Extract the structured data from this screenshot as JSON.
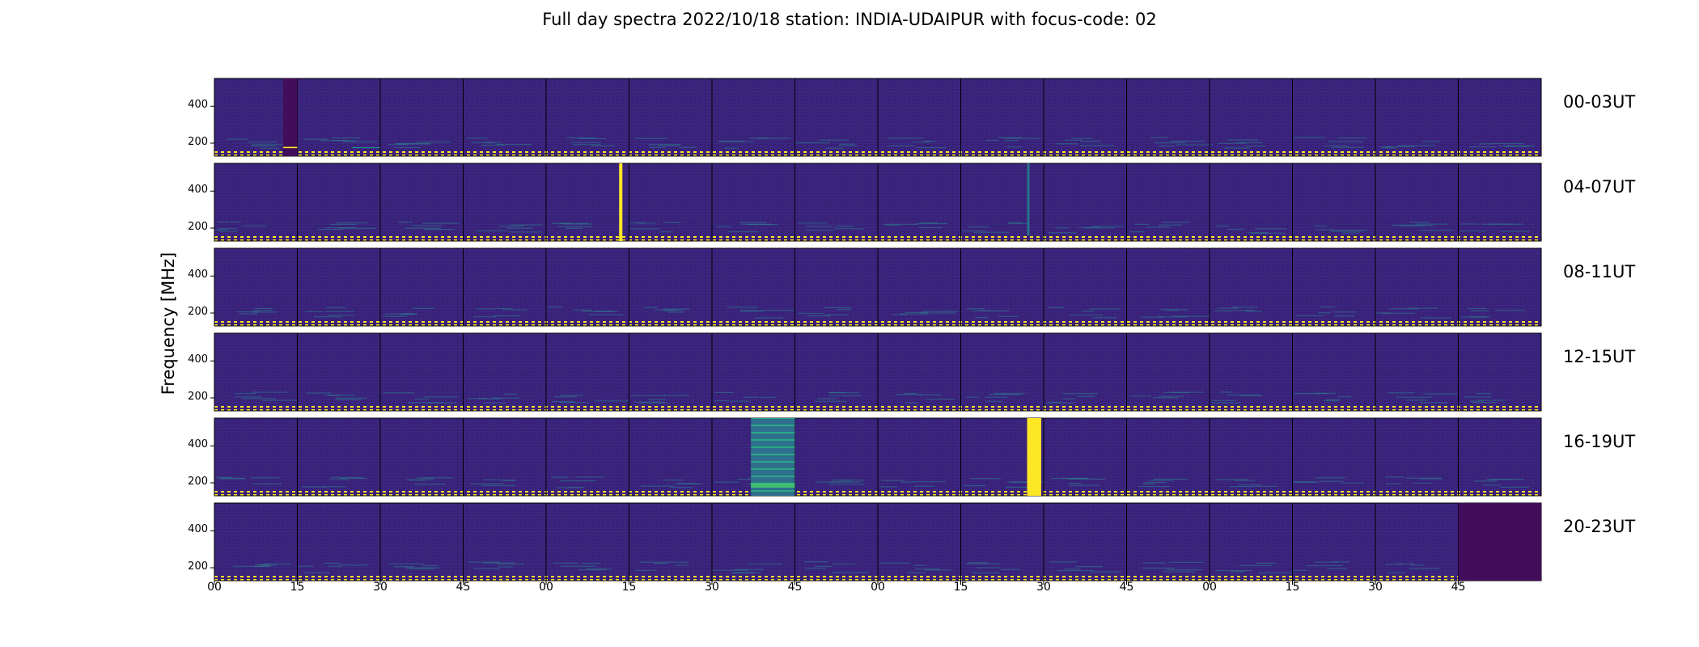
{
  "chart_data": {
    "type": "heatmap",
    "title": "Full day spectra 2022/10/18 station: INDIA-UDAIPUR with focus-code: 02",
    "ylabel": "Frequency [MHz]",
    "xlabel": "",
    "rows": [
      "00-03UT",
      "04-07UT",
      "08-11UT",
      "12-15UT",
      "16-19UT",
      "20-23UT"
    ],
    "panels_per_row": 16,
    "panel_minutes": 15,
    "ylim": [
      130,
      550
    ],
    "yticks": [
      "200",
      "400"
    ],
    "xticks": [
      "00",
      "15",
      "30",
      "45",
      "00",
      "15",
      "30",
      "45",
      "00",
      "15",
      "30",
      "45",
      "00",
      "15",
      "30",
      "45"
    ],
    "colormap": "viridis",
    "colors": {
      "background": "#3b1f7a",
      "dark_panel": "#420d5a",
      "bright": "#fde725",
      "medium": "#21918c",
      "frame": "#000000"
    },
    "features": [
      {
        "row": 0,
        "panel": 0,
        "kind": "dark-band",
        "t_start": 0.83,
        "t_end": 1.0,
        "f_start": 130,
        "f_end": 550
      },
      {
        "row": 0,
        "panel": 0,
        "kind": "bright-line",
        "t_start": 0.83,
        "t_end": 1.0,
        "f_start": 173,
        "f_end": 180
      },
      {
        "row": 0,
        "panel": 1,
        "kind": "teal-line",
        "t_start": 0.66,
        "t_end": 1.0,
        "f_start": 173,
        "f_end": 178
      },
      {
        "row": 1,
        "panel": 4,
        "kind": "bright-vertical",
        "t_start": 0.88,
        "t_end": 0.92,
        "f_start": 130,
        "f_end": 550
      },
      {
        "row": 1,
        "panel": 9,
        "kind": "teal-vertical",
        "t_start": 0.8,
        "t_end": 0.83,
        "f_start": 160,
        "f_end": 550
      },
      {
        "row": 4,
        "panel": 6,
        "kind": "teal-block",
        "t_start": 0.47,
        "t_end": 1.0,
        "f_start": 130,
        "f_end": 550
      },
      {
        "row": 4,
        "panel": 9,
        "kind": "bright-vertical",
        "t_start": 0.8,
        "t_end": 0.97,
        "f_start": 130,
        "f_end": 550
      },
      {
        "row": 5,
        "panel": 15,
        "kind": "dark-band",
        "t_start": 0.0,
        "t_end": 1.0,
        "f_start": 130,
        "f_end": 550
      }
    ]
  }
}
